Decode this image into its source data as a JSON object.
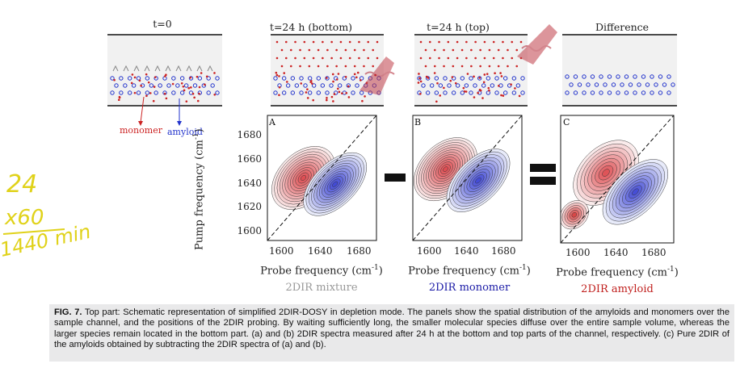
{
  "panels": {
    "top_titles": [
      "t=0",
      "t=24 h (bottom)",
      "t=24 h (top)",
      "Difference"
    ],
    "legend": {
      "monomer": "monomer",
      "amyloid": "amyloid"
    },
    "letters": [
      "A",
      "B",
      "C"
    ],
    "yaxis_label": "Pump frequency (cm",
    "yaxis_label_sup": "-1",
    "yaxis_label_end": ")",
    "yticks": [
      "1680",
      "1660",
      "1640",
      "1620",
      "1600"
    ],
    "xticks": [
      "1600",
      "1640",
      "1680"
    ],
    "xaxis_label": "Probe frequency (cm",
    "xaxis_label_sup": "-1",
    "xaxis_label_end": ")",
    "subtitles": [
      "2DIR mixture",
      "2DIR monomer",
      "2DIR amyloid"
    ],
    "colors": {
      "monomer": "#cc2222",
      "amyloid": "#2233cc",
      "mixture_label": "#999999",
      "monomer_label": "#1a1aa6",
      "amyloid_label": "#c0201e"
    }
  },
  "handwriting": {
    "line1": "24",
    "line2": "x60",
    "line3": "1440 min"
  },
  "caption": {
    "label": "FIG. 7.",
    "text": " Top part: Schematic representation of simplified 2DIR-DOSY in depletion mode. The panels show the spatial distribution of the amyloids and monomers over the sample channel, and the positions of the 2DIR probing. By waiting sufficiently long, the smaller molecular species diffuse over the entire sample volume, whereas the larger species remain located in the bottom part. (a) and (b) 2DIR spectra measured after 24 h at the bottom and top parts of the channel, respectively. (c) Pure 2DIR of the amyloids obtained by subtracting the 2DIR spectra of (a) and (b)."
  }
}
